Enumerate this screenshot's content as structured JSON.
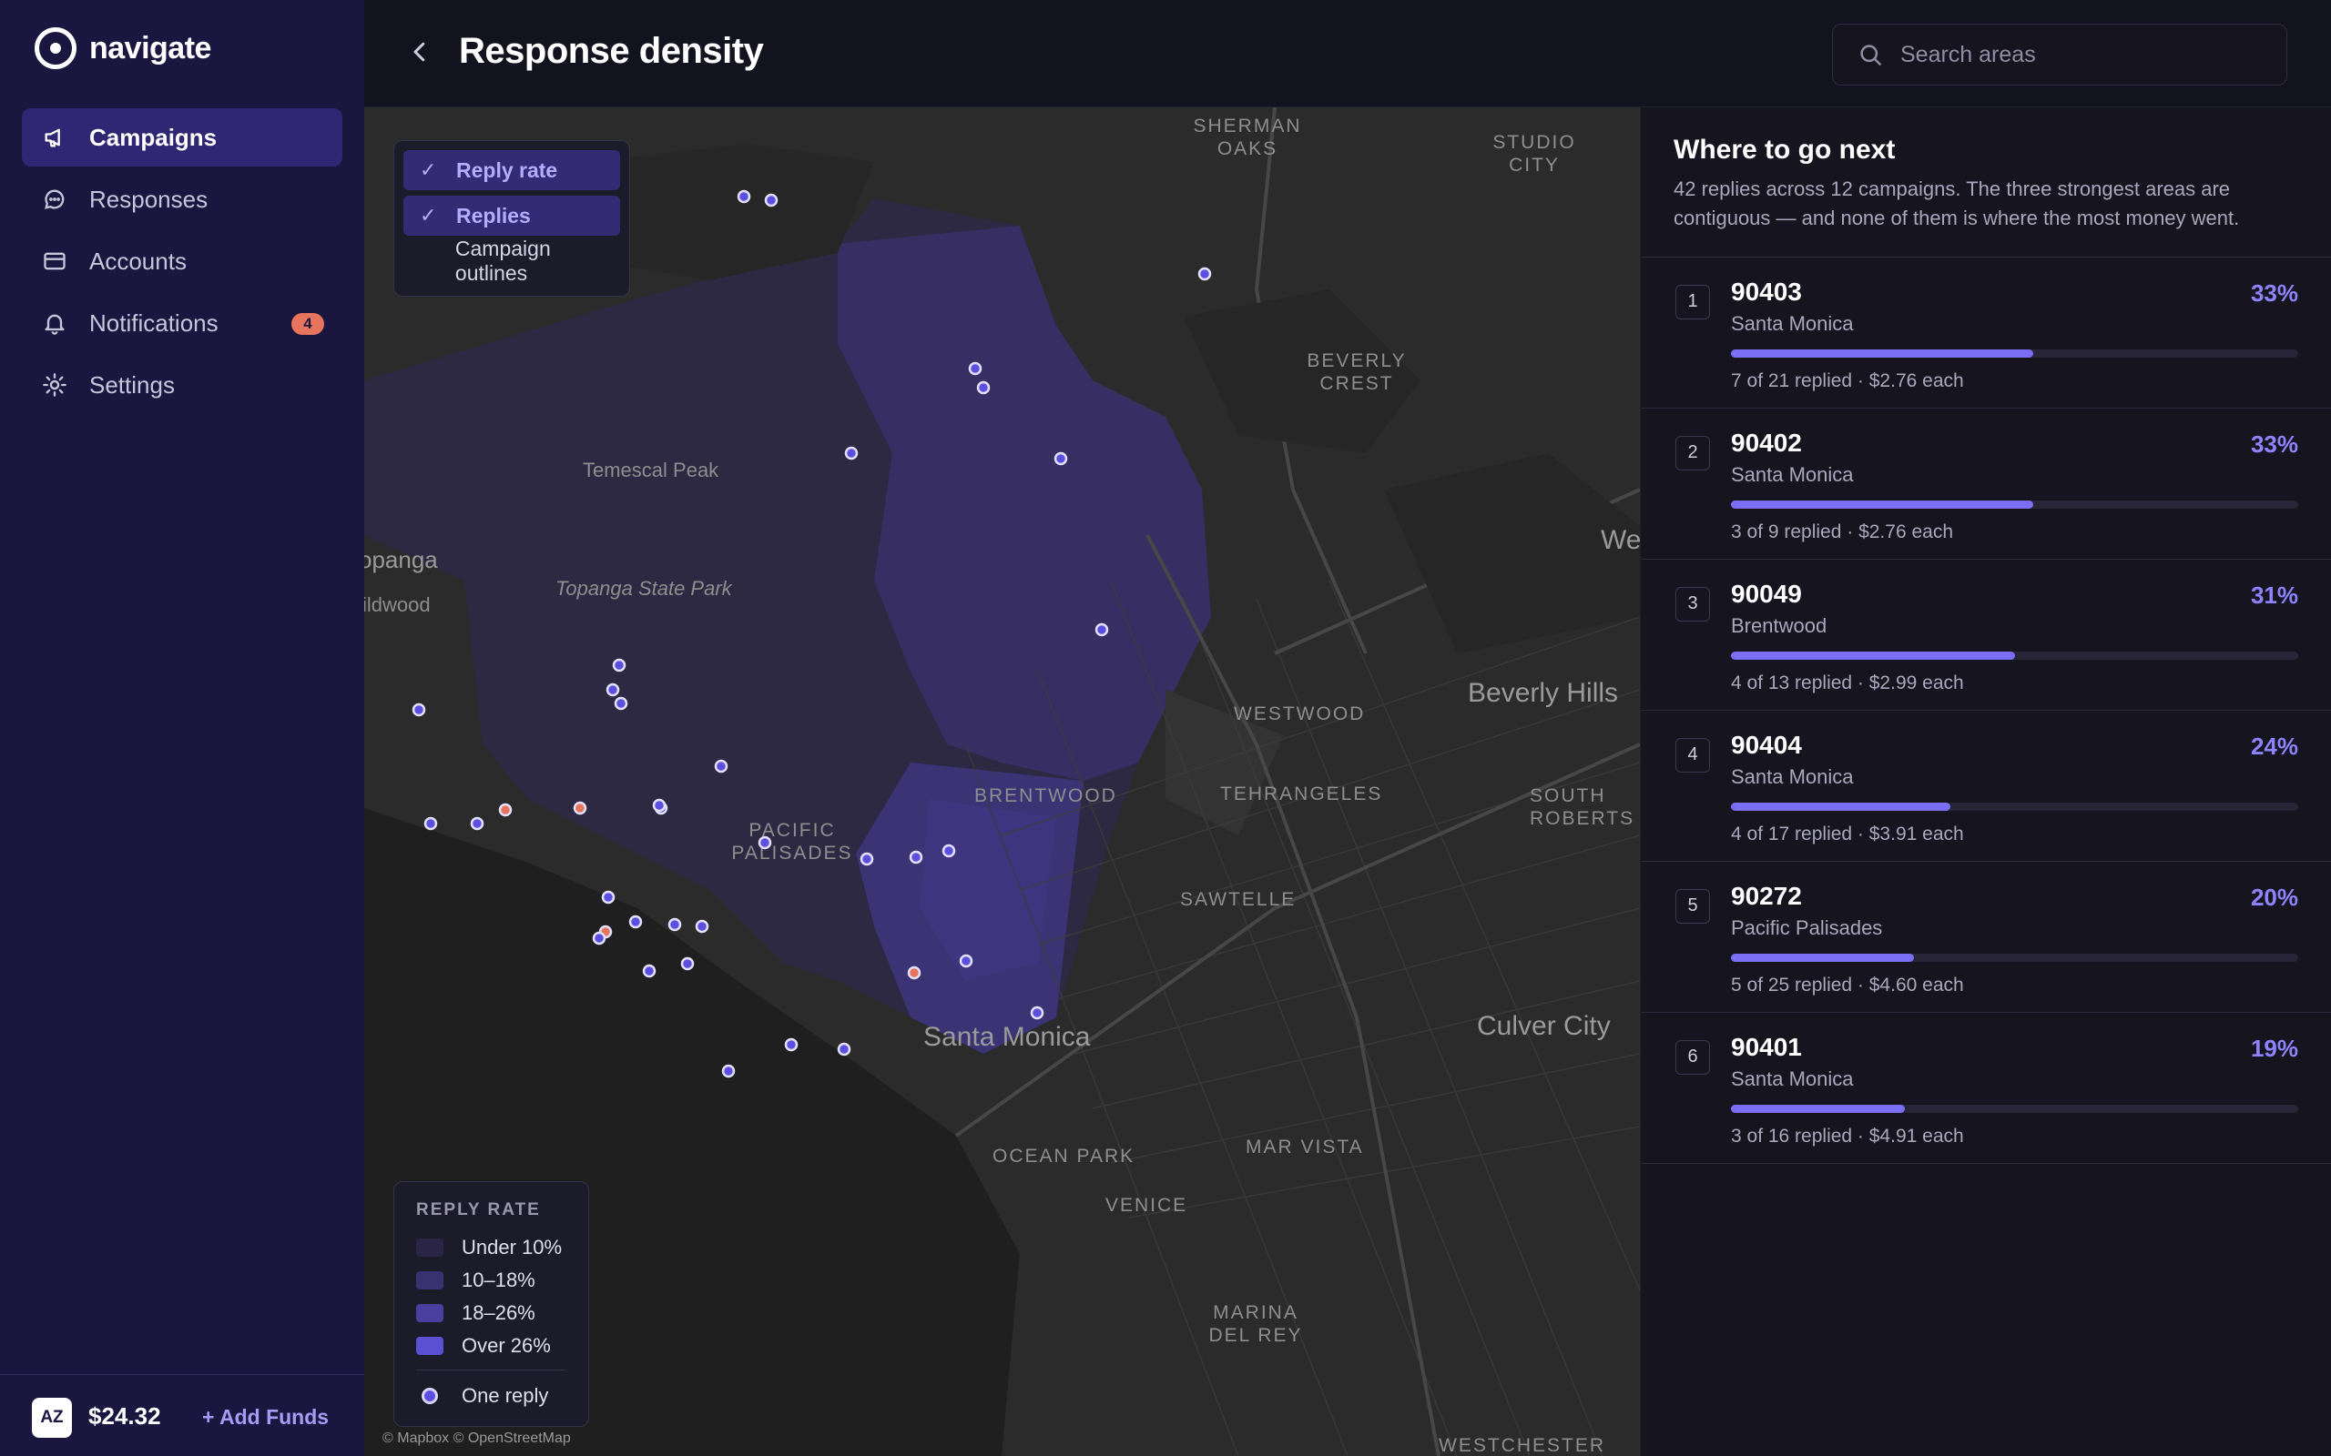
{
  "app": {
    "name": "navigate"
  },
  "sidebar": {
    "items": [
      {
        "label": "Campaigns",
        "icon": "megaphone-icon",
        "active": true
      },
      {
        "label": "Responses",
        "icon": "chat-bubble-icon"
      },
      {
        "label": "Accounts",
        "icon": "credit-card-icon"
      },
      {
        "label": "Notifications",
        "icon": "bell-icon",
        "badge": "4"
      },
      {
        "label": "Settings",
        "icon": "gear-icon"
      }
    ],
    "footer": {
      "avatar": "AZ",
      "balance": "$24.32",
      "add_funds": "+ Add Funds"
    }
  },
  "header": {
    "title": "Response density",
    "search_placeholder": "Search areas"
  },
  "map": {
    "layers": [
      {
        "label": "Reply rate",
        "checked": true
      },
      {
        "label": "Replies",
        "checked": true
      },
      {
        "label": "Campaign outlines",
        "checked": false
      }
    ],
    "labels": {
      "sherman_oaks": "SHERMAN OAKS",
      "studio_city": "STUDIO CITY",
      "beverly_crest": "BEVERLY CREST",
      "temescal_peak": "Temescal Peak",
      "topanga": "opanga",
      "wildwood": "ildwood",
      "topanga_state_park": "Topanga State Park",
      "we": "We",
      "westwood": "WESTWOOD",
      "beverly_hills": "Beverly Hills",
      "brentwood": "BRENTWOOD",
      "tehrangeles": "TEHRANGELES",
      "south_robertson": "SOUTH ROBERTS",
      "pacific_palisades": "PACIFIC PALISADES",
      "sawtelle": "SAWTELLE",
      "santa_monica": "Santa Monica",
      "culver_city": "Culver City",
      "ocean_park": "OCEAN PARK",
      "mar_vista": "MAR VISTA",
      "venice": "VENICE",
      "marina_del_rey": "MARINA DEL REY",
      "westchester": "WESTCHESTER"
    },
    "legend": {
      "title": "REPLY RATE",
      "items": [
        {
          "label": "Under 10%",
          "color": "#2a2545"
        },
        {
          "label": "10–18%",
          "color": "#3a3270"
        },
        {
          "label": "18–26%",
          "color": "#4a3f9c"
        },
        {
          "label": "Over 26%",
          "color": "#5b4fd2"
        }
      ],
      "dot_label": "One reply"
    },
    "attribution": "© Mapbox © OpenStreetMap",
    "colors": {
      "reply_dot": "#5b4fe0",
      "reply_dot_alt": "#e7755d"
    }
  },
  "panel": {
    "title": "Where to go next",
    "description": "42 replies across 12 campaigns. The three strongest areas are contiguous — and none of them is where the most money went.",
    "rows": [
      {
        "rank": "1",
        "zip": "90403",
        "area": "Santa Monica",
        "pct": "33%",
        "fraction": 0.33,
        "detail": "7 of 21 replied · $2.76 each"
      },
      {
        "rank": "2",
        "zip": "90402",
        "area": "Santa Monica",
        "pct": "33%",
        "fraction": 0.33,
        "detail": "3 of 9 replied · $2.76 each"
      },
      {
        "rank": "3",
        "zip": "90049",
        "area": "Brentwood",
        "pct": "31%",
        "fraction": 0.31,
        "detail": "4 of 13 replied · $2.99 each"
      },
      {
        "rank": "4",
        "zip": "90404",
        "area": "Santa Monica",
        "pct": "24%",
        "fraction": 0.24,
        "detail": "4 of 17 replied · $3.91 each"
      },
      {
        "rank": "5",
        "zip": "90272",
        "area": "Pacific Palisades",
        "pct": "20%",
        "fraction": 0.2,
        "detail": "5 of 25 replied · $4.60 each"
      },
      {
        "rank": "6",
        "zip": "90401",
        "area": "Santa Monica",
        "pct": "19%",
        "fraction": 0.19,
        "detail": "3 of 16 replied · $4.91 each"
      }
    ]
  }
}
